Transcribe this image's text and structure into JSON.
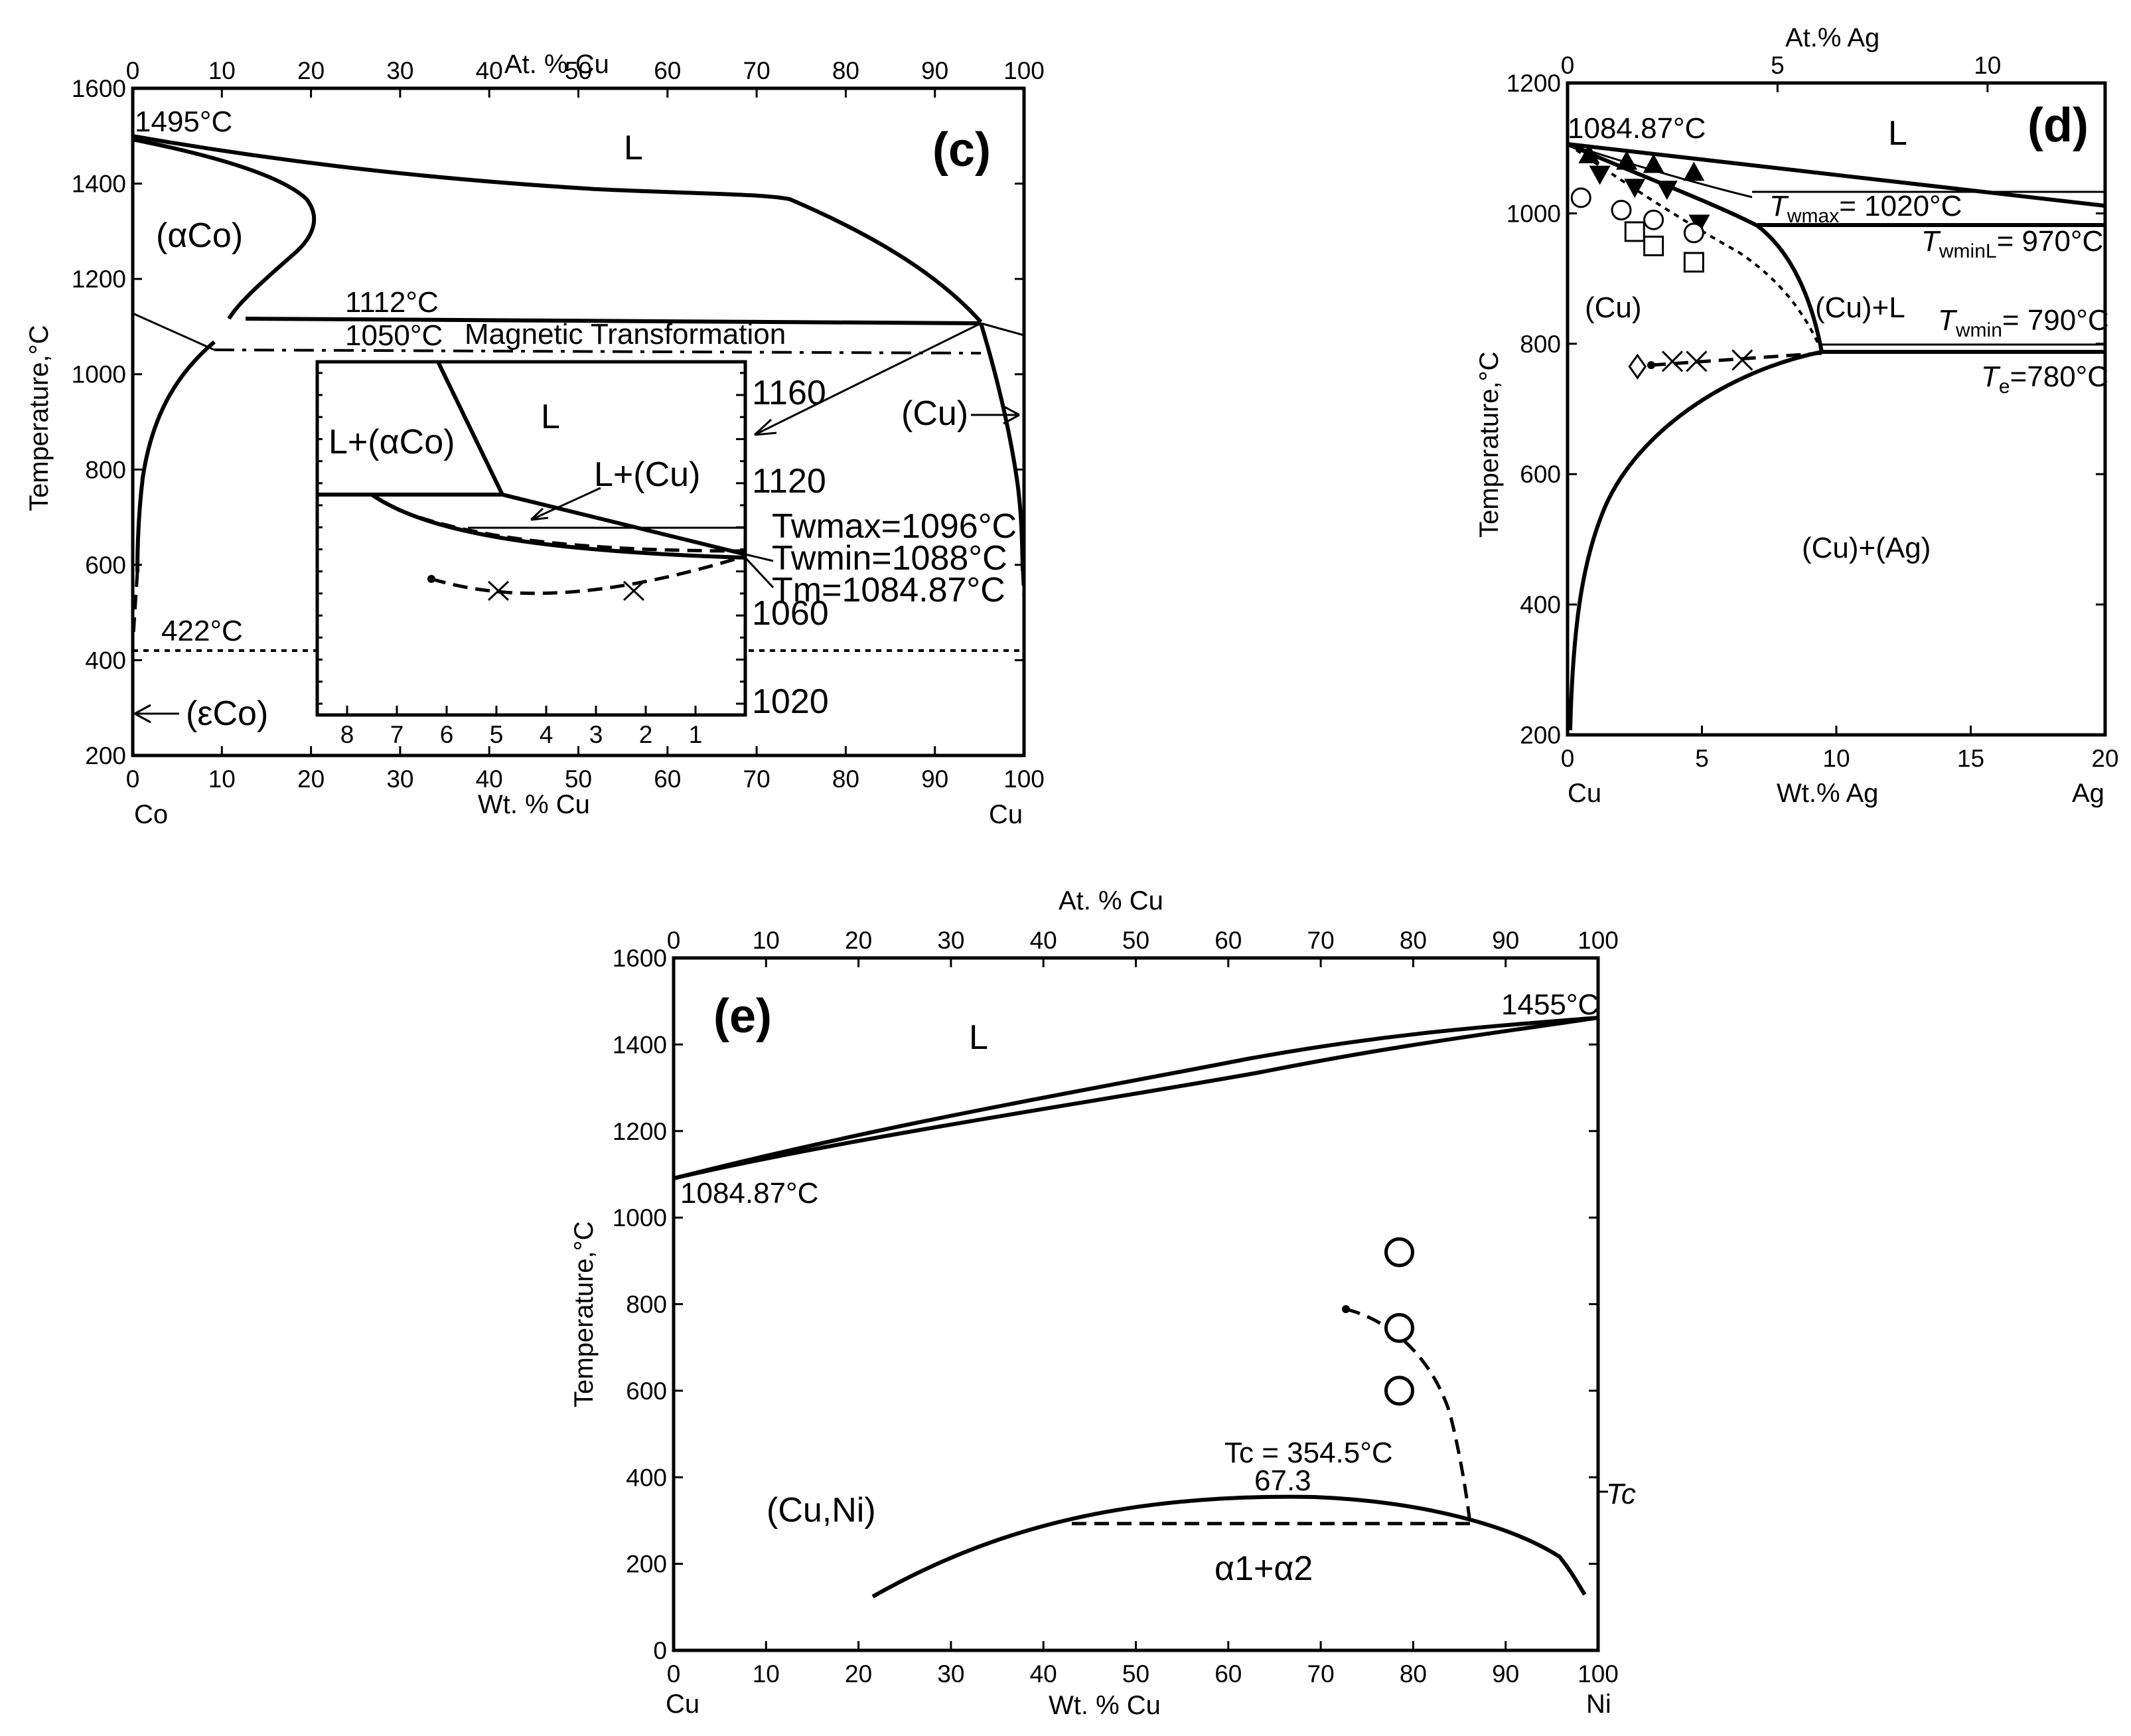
{
  "chart_data": [
    {
      "panel": "(c)",
      "type": "phase-diagram",
      "title": "",
      "xlabel_bottom": "Wt. % Cu",
      "xlabel_top": "At. % Cu",
      "ylabel": "Temperature,°C",
      "xlim": [
        0,
        100
      ],
      "ylim": [
        200,
        1600
      ],
      "x_ticks_bottom": [
        "0",
        "10",
        "20",
        "30",
        "40",
        "50",
        "60",
        "70",
        "80",
        "90",
        "100"
      ],
      "x_ticks_top": [
        "0",
        "10",
        "20",
        "30",
        "40",
        "50",
        "60",
        "70",
        "80",
        "90",
        "100"
      ],
      "y_ticks": [
        "200",
        "400",
        "600",
        "800",
        "1000",
        "1200",
        "1400",
        "1600"
      ],
      "left_element": "Co",
      "right_element": "Cu",
      "labels": {
        "liquid": "L",
        "alpha_co": "(αCo)",
        "epsilon_co": "(εCo)",
        "cu": "(Cu)",
        "t1495": "1495°C",
        "t1112": "1112°C",
        "t1050": "1050°C",
        "magnetic": "Magnetic Transformation",
        "t422": "422°C"
      },
      "inset": {
        "x_ticks": [
          "8",
          "7",
          "6",
          "5",
          "4",
          "3",
          "2",
          "1"
        ],
        "y_ticks": [
          "1020",
          "1060",
          "1120",
          "1160"
        ],
        "labels": {
          "l_alpha": "L+(αCo)",
          "l": "L",
          "l_cu": "L+(Cu)",
          "twmax": "Twmax=1096°C",
          "twmin": "Twmin=1088°C",
          "tm": "Tm=1084.87°C"
        },
        "data_points_x_marker": [
          {
            "x": 4.9,
            "y": 1068
          },
          {
            "x": 2.1,
            "y": 1068
          }
        ],
        "data_point_dot": {
          "x": 6.4,
          "y": 1075
        }
      }
    },
    {
      "panel": "(d)",
      "type": "phase-diagram",
      "title": "",
      "xlabel_bottom": "Wt.% Ag",
      "xlabel_top": "At.% Ag",
      "ylabel": "Temperature,°C",
      "xlim": [
        0,
        20
      ],
      "ylim": [
        200,
        1200
      ],
      "x_ticks_bottom": [
        "0",
        "5",
        "10",
        "15",
        "20"
      ],
      "x_ticks_top": [
        "0",
        "5",
        "10"
      ],
      "y_ticks": [
        "200",
        "400",
        "600",
        "800",
        "1000",
        "1200"
      ],
      "left_element": "Cu",
      "right_element": "Ag",
      "labels": {
        "liquid": "L",
        "tm": "1084.87°C",
        "cu": "(Cu)",
        "cu_l": "(Cu)+L",
        "cu_ag": "(Cu)+(Ag)",
        "twmax_T": "T",
        "twmax_sub": "wmax",
        "twmax_val": "= 1020°C",
        "twminl_T": "T",
        "twminl_sub": "wminL",
        "twminl_val": "= 970°C",
        "twmin_T": "T",
        "twmin_sub": "wmin",
        "twmin_val": "= 790°C",
        "te_T": "T",
        "te_sub": "e",
        "te_val": "=780°C"
      },
      "markers": {
        "filled_up_triangles": [
          {
            "x": 0.8,
            "y": 1090
          },
          {
            "x": 2.2,
            "y": 1080
          },
          {
            "x": 3.2,
            "y": 1075
          },
          {
            "x": 4.7,
            "y": 1063
          }
        ],
        "filled_down_triangles": [
          {
            "x": 1.2,
            "y": 1060
          },
          {
            "x": 2.5,
            "y": 1040
          },
          {
            "x": 3.7,
            "y": 1037
          },
          {
            "x": 4.9,
            "y": 985
          }
        ],
        "open_circles": [
          {
            "x": 0.5,
            "y": 1024
          },
          {
            "x": 2.0,
            "y": 1005
          },
          {
            "x": 3.2,
            "y": 990
          },
          {
            "x": 4.7,
            "y": 970
          }
        ],
        "open_squares": [
          {
            "x": 2.5,
            "y": 972
          },
          {
            "x": 3.2,
            "y": 950
          },
          {
            "x": 4.7,
            "y": 925
          }
        ],
        "x_markers": [
          {
            "x": 3.9,
            "y": 773
          },
          {
            "x": 4.8,
            "y": 773
          },
          {
            "x": 6.5,
            "y": 775
          }
        ],
        "diamond": {
          "x": 2.6,
          "y": 765
        },
        "dot": {
          "x": 3.3,
          "y": 760
        }
      }
    },
    {
      "panel": "(e)",
      "type": "phase-diagram",
      "title": "",
      "xlabel_bottom": "Wt. % Cu",
      "xlabel_top": "At. % Cu",
      "ylabel": "Temperature,°C",
      "xlim": [
        0,
        100
      ],
      "ylim": [
        0,
        1600
      ],
      "x_ticks_bottom": [
        "0",
        "10",
        "20",
        "30",
        "40",
        "50",
        "60",
        "70",
        "80",
        "90",
        "100"
      ],
      "x_ticks_top": [
        "0",
        "10",
        "20",
        "30",
        "40",
        "50",
        "60",
        "70",
        "80",
        "90",
        "100"
      ],
      "y_ticks": [
        "0",
        "200",
        "400",
        "600",
        "800",
        "1000",
        "1200",
        "1400",
        "1600"
      ],
      "left_element": "Cu",
      "right_element": "Ni",
      "labels": {
        "liquid": "L",
        "t1455": "1455°C",
        "t1084": "1084.87°C",
        "cuni": "(Cu,Ni)",
        "tc_val": "Tc = 354.5°C",
        "comp": "67.3",
        "miscibility": "α1+α2",
        "tc_axis": "Tc"
      },
      "markers": {
        "open_circles": [
          {
            "x": 78.5,
            "y": 920
          },
          {
            "x": 78.5,
            "y": 745
          },
          {
            "x": 78.5,
            "y": 600
          }
        ],
        "dot": {
          "x": 72.8,
          "y": 785
        }
      }
    }
  ]
}
